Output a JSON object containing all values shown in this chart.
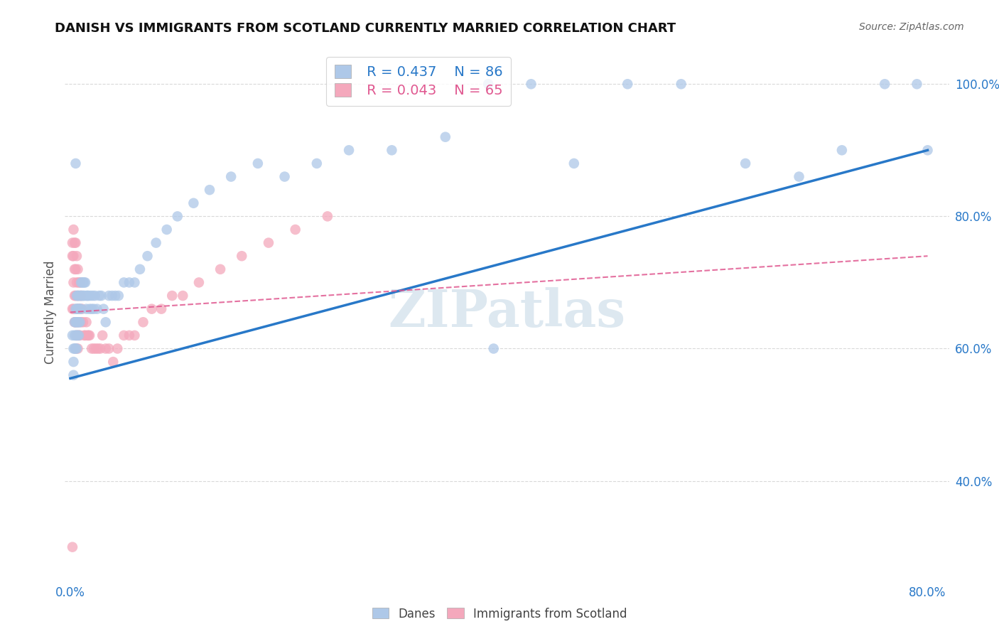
{
  "title": "DANISH VS IMMIGRANTS FROM SCOTLAND CURRENTLY MARRIED CORRELATION CHART",
  "source": "Source: ZipAtlas.com",
  "ylabel": "Currently Married",
  "watermark": "ZIPatlas",
  "xlim": [
    -0.005,
    0.82
  ],
  "ylim": [
    0.25,
    1.06
  ],
  "xtick_labels": [
    "0.0%",
    "80.0%"
  ],
  "xtick_values": [
    0.0,
    0.8
  ],
  "ytick_labels": [
    "40.0%",
    "60.0%",
    "80.0%",
    "100.0%"
  ],
  "ytick_values": [
    0.4,
    0.6,
    0.8,
    1.0
  ],
  "legend1_R": "0.437",
  "legend1_N": "86",
  "legend2_R": "0.043",
  "legend2_N": "65",
  "blue_color": "#aec8e8",
  "pink_color": "#f4a8bc",
  "blue_line_color": "#2878c8",
  "pink_line_color": "#e05890",
  "grid_color": "#d0d0d0",
  "danes_x": [
    0.002,
    0.003,
    0.003,
    0.003,
    0.004,
    0.004,
    0.004,
    0.005,
    0.005,
    0.005,
    0.005,
    0.006,
    0.006,
    0.006,
    0.006,
    0.006,
    0.007,
    0.007,
    0.007,
    0.007,
    0.008,
    0.008,
    0.008,
    0.008,
    0.009,
    0.009,
    0.009,
    0.01,
    0.01,
    0.01,
    0.011,
    0.011,
    0.012,
    0.012,
    0.013,
    0.013,
    0.014,
    0.015,
    0.015,
    0.016,
    0.017,
    0.018,
    0.019,
    0.02,
    0.021,
    0.022,
    0.023,
    0.025,
    0.027,
    0.029,
    0.031,
    0.033,
    0.036,
    0.039,
    0.042,
    0.045,
    0.05,
    0.055,
    0.06,
    0.065,
    0.072,
    0.08,
    0.09,
    0.1,
    0.115,
    0.13,
    0.15,
    0.175,
    0.2,
    0.23,
    0.26,
    0.3,
    0.35,
    0.39,
    0.43,
    0.47,
    0.52,
    0.57,
    0.63,
    0.68,
    0.72,
    0.76,
    0.79,
    0.8,
    0.005,
    0.395
  ],
  "danes_y": [
    0.62,
    0.6,
    0.58,
    0.56,
    0.64,
    0.62,
    0.6,
    0.66,
    0.64,
    0.62,
    0.6,
    0.68,
    0.66,
    0.64,
    0.62,
    0.6,
    0.68,
    0.66,
    0.64,
    0.62,
    0.68,
    0.66,
    0.64,
    0.62,
    0.68,
    0.66,
    0.64,
    0.7,
    0.68,
    0.66,
    0.7,
    0.68,
    0.7,
    0.68,
    0.7,
    0.68,
    0.7,
    0.68,
    0.66,
    0.68,
    0.68,
    0.66,
    0.68,
    0.66,
    0.68,
    0.66,
    0.68,
    0.66,
    0.68,
    0.68,
    0.66,
    0.64,
    0.68,
    0.68,
    0.68,
    0.68,
    0.7,
    0.7,
    0.7,
    0.72,
    0.74,
    0.76,
    0.78,
    0.8,
    0.82,
    0.84,
    0.86,
    0.88,
    0.86,
    0.88,
    0.9,
    0.9,
    0.92,
    1.0,
    1.0,
    0.88,
    1.0,
    1.0,
    0.88,
    0.86,
    0.9,
    1.0,
    1.0,
    0.9,
    0.88,
    0.6
  ],
  "scot_x": [
    0.002,
    0.002,
    0.002,
    0.003,
    0.003,
    0.003,
    0.003,
    0.004,
    0.004,
    0.004,
    0.004,
    0.005,
    0.005,
    0.005,
    0.005,
    0.005,
    0.006,
    0.006,
    0.006,
    0.006,
    0.007,
    0.007,
    0.007,
    0.007,
    0.008,
    0.008,
    0.008,
    0.009,
    0.009,
    0.009,
    0.01,
    0.01,
    0.011,
    0.012,
    0.013,
    0.014,
    0.015,
    0.016,
    0.017,
    0.018,
    0.02,
    0.022,
    0.024,
    0.026,
    0.028,
    0.03,
    0.033,
    0.036,
    0.04,
    0.044,
    0.05,
    0.055,
    0.06,
    0.068,
    0.076,
    0.085,
    0.095,
    0.105,
    0.12,
    0.14,
    0.16,
    0.185,
    0.21,
    0.24,
    0.002
  ],
  "scot_y": [
    0.76,
    0.74,
    0.66,
    0.78,
    0.74,
    0.7,
    0.66,
    0.76,
    0.72,
    0.68,
    0.64,
    0.76,
    0.72,
    0.68,
    0.64,
    0.6,
    0.74,
    0.7,
    0.66,
    0.62,
    0.72,
    0.68,
    0.64,
    0.6,
    0.7,
    0.66,
    0.62,
    0.7,
    0.66,
    0.62,
    0.68,
    0.64,
    0.66,
    0.64,
    0.62,
    0.62,
    0.64,
    0.62,
    0.62,
    0.62,
    0.6,
    0.6,
    0.6,
    0.6,
    0.6,
    0.62,
    0.6,
    0.6,
    0.58,
    0.6,
    0.62,
    0.62,
    0.62,
    0.64,
    0.66,
    0.66,
    0.68,
    0.68,
    0.7,
    0.72,
    0.74,
    0.76,
    0.78,
    0.8,
    0.3
  ],
  "blue_line_x": [
    0.0,
    0.8
  ],
  "blue_line_y": [
    0.555,
    0.9
  ],
  "pink_line_x": [
    0.0,
    0.8
  ],
  "pink_line_y": [
    0.655,
    0.74
  ]
}
